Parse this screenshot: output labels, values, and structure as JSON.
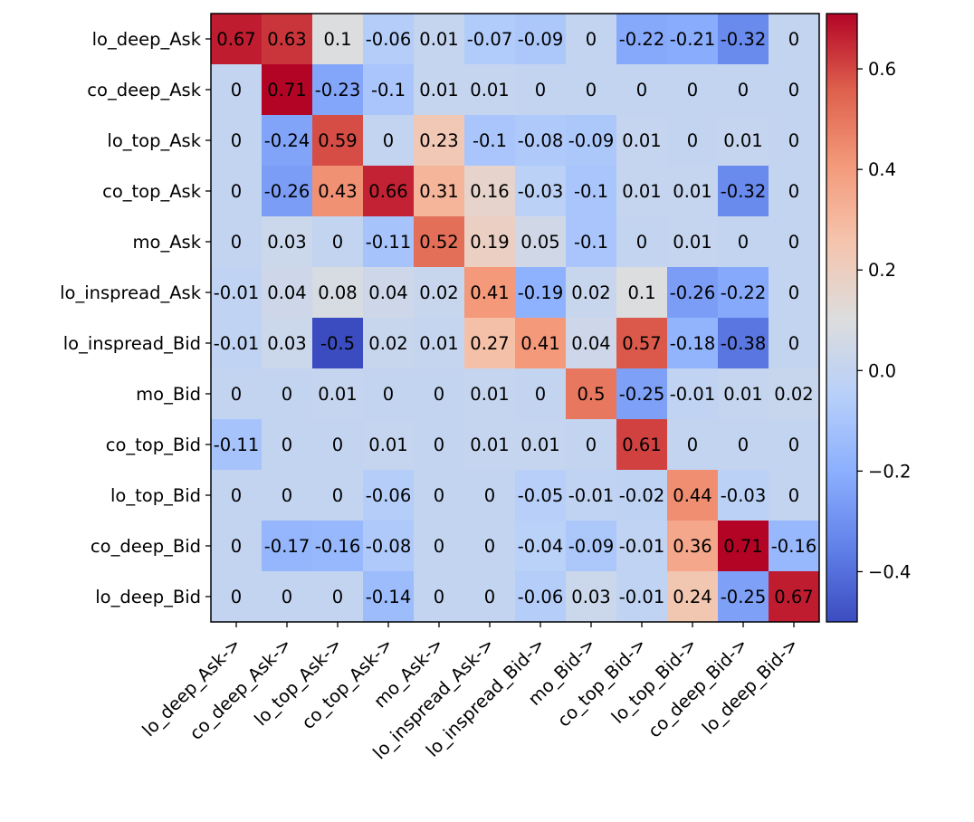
{
  "chart_data": {
    "type": "heatmap",
    "title": "",
    "xlabel": "",
    "ylabel": "",
    "rows": [
      "lo_deep_Ask",
      "co_deep_Ask",
      "lo_top_Ask",
      "co_top_Ask",
      "mo_Ask",
      "lo_inspread_Ask",
      "lo_inspread_Bid",
      "mo_Bid",
      "co_top_Bid",
      "lo_top_Bid",
      "co_deep_Bid",
      "lo_deep_Bid"
    ],
    "columns": [
      "lo_deep_Ask->",
      "co_deep_Ask->",
      "lo_top_Ask->",
      "co_top_Ask->",
      "mo_Ask->",
      "lo_inspread_Ask->",
      "lo_inspread_Bid->",
      "mo_Bid->",
      "co_top_Bid->",
      "lo_top_Bid->",
      "co_deep_Bid->",
      "lo_deep_Bid->"
    ],
    "values": [
      [
        0.67,
        0.63,
        0.1,
        -0.06,
        0.01,
        -0.07,
        -0.09,
        0.0,
        -0.22,
        -0.21,
        -0.32,
        0.0
      ],
      [
        0.0,
        0.71,
        -0.23,
        -0.1,
        0.01,
        0.01,
        0.0,
        0.0,
        0.0,
        0.0,
        0.0,
        0.0
      ],
      [
        0.0,
        -0.24,
        0.59,
        0.0,
        0.23,
        -0.1,
        -0.08,
        -0.09,
        0.01,
        0.0,
        0.01,
        0.0
      ],
      [
        0.0,
        -0.26,
        0.43,
        0.66,
        0.31,
        0.16,
        -0.03,
        -0.1,
        0.01,
        0.01,
        -0.32,
        0.0
      ],
      [
        0.0,
        0.03,
        0.0,
        -0.11,
        0.52,
        0.19,
        0.05,
        -0.1,
        0.0,
        0.01,
        0.0,
        0.0
      ],
      [
        -0.01,
        0.04,
        0.08,
        0.04,
        0.02,
        0.41,
        -0.19,
        0.02,
        0.1,
        -0.26,
        -0.22,
        0.0
      ],
      [
        -0.01,
        0.03,
        -0.5,
        0.02,
        0.01,
        0.27,
        0.41,
        0.04,
        0.57,
        -0.18,
        -0.38,
        0.0
      ],
      [
        0.0,
        0.0,
        0.01,
        0.0,
        0.0,
        0.01,
        0.0,
        0.5,
        -0.25,
        -0.01,
        0.01,
        0.02
      ],
      [
        -0.11,
        0.0,
        0.0,
        0.01,
        0.0,
        0.01,
        0.01,
        0.0,
        0.61,
        0.0,
        0.0,
        0.0
      ],
      [
        0.0,
        0.0,
        0.0,
        -0.06,
        0.0,
        0.0,
        -0.05,
        -0.01,
        -0.02,
        0.44,
        -0.03,
        0.0
      ],
      [
        0.0,
        -0.17,
        -0.16,
        -0.08,
        0.0,
        0.0,
        -0.04,
        -0.09,
        -0.01,
        0.36,
        0.71,
        -0.16
      ],
      [
        0.0,
        0.0,
        0.0,
        -0.14,
        0.0,
        0.0,
        -0.06,
        0.03,
        -0.01,
        0.24,
        -0.25,
        0.67
      ]
    ],
    "colormap": "coolwarm",
    "vmin": -0.5,
    "vmax": 0.71,
    "colorbar": {
      "ticks": [
        -0.4,
        -0.2,
        0.0,
        0.2,
        0.4,
        0.6
      ],
      "tick_labels": [
        "−0.4",
        "−0.2",
        "0.0",
        "0.2",
        "0.4",
        "0.6"
      ],
      "placement": "right"
    },
    "grid": false,
    "legend": "none"
  }
}
